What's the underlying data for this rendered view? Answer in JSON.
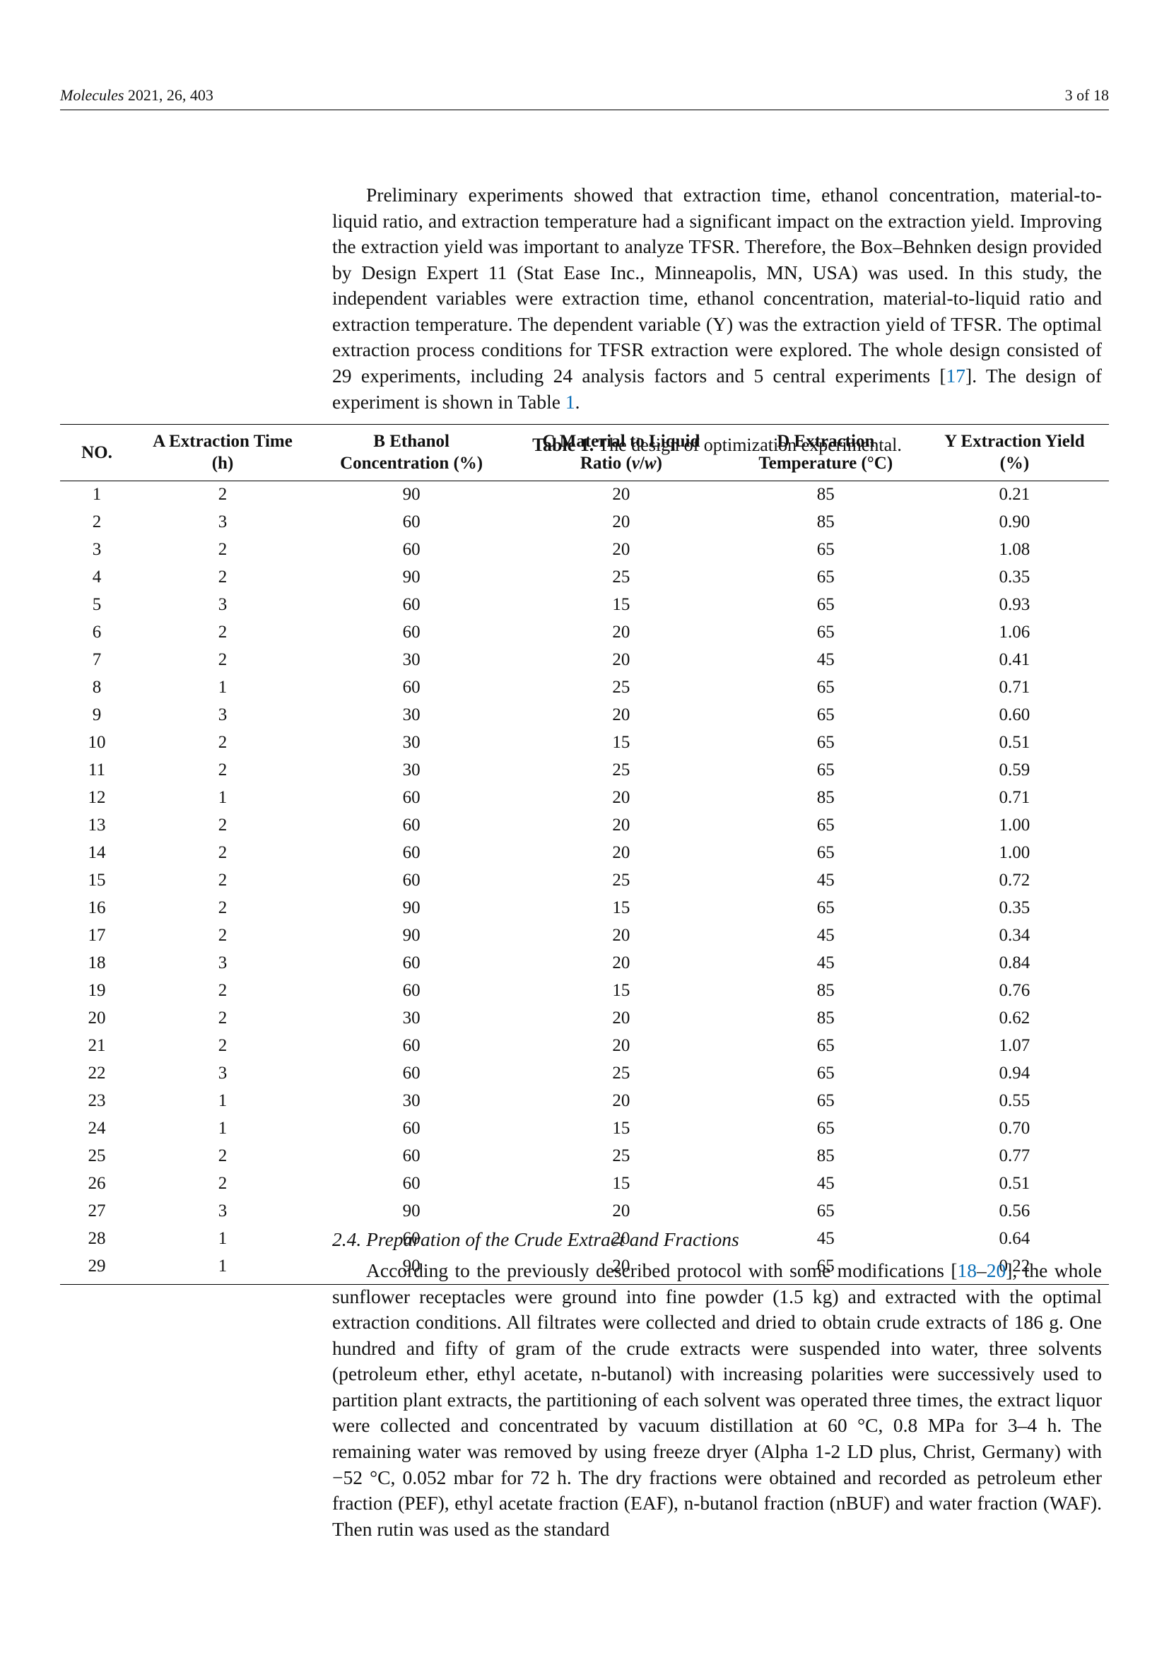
{
  "header": {
    "journal": "Molecules",
    "year": "2021",
    "vol_issue": ", 26, 403",
    "page_info": "3 of 18"
  },
  "paragraph1": "Preliminary experiments showed that extraction time, ethanol concentration, material-to-liquid ratio, and extraction temperature had a significant impact on the extraction yield. Improving the extraction yield was important to analyze TFSR. Therefore, the Box–Behnken design provided by Design Expert 11 (Stat Ease Inc., Minneapolis, MN, USA) was used. In this study, the independent variables were extraction time, ethanol concentration, material-to-liquid ratio and extraction temperature. The dependent variable (Y) was the extraction yield of TFSR. The optimal extraction process conditions for TFSR extraction were explored. The whole design consisted of 29 experiments, including 24 analysis factors and 5 central experiments [",
  "cite17": "17",
  "paragraph1_tail": "]. The design of experiment is shown in Table ",
  "table_ref": "1",
  "paragraph1_end": ".",
  "table_caption_label": "Table 1.",
  "table_caption_text": " The design of optimization experimental.",
  "table": {
    "columns": [
      "NO.",
      "A Extraction Time (h)",
      "B Ethanol Concentration (%)",
      "C Material to Liquid Ratio (v/w)",
      "D Extraction Temperature (°C)",
      "Y Extraction Yield (%)"
    ],
    "col_widths_pct": [
      7,
      17,
      19,
      21,
      18,
      18
    ],
    "rows": [
      [
        "1",
        "2",
        "90",
        "20",
        "85",
        "0.21"
      ],
      [
        "2",
        "3",
        "60",
        "20",
        "85",
        "0.90"
      ],
      [
        "3",
        "2",
        "60",
        "20",
        "65",
        "1.08"
      ],
      [
        "4",
        "2",
        "90",
        "25",
        "65",
        "0.35"
      ],
      [
        "5",
        "3",
        "60",
        "15",
        "65",
        "0.93"
      ],
      [
        "6",
        "2",
        "60",
        "20",
        "65",
        "1.06"
      ],
      [
        "7",
        "2",
        "30",
        "20",
        "45",
        "0.41"
      ],
      [
        "8",
        "1",
        "60",
        "25",
        "65",
        "0.71"
      ],
      [
        "9",
        "3",
        "30",
        "20",
        "65",
        "0.60"
      ],
      [
        "10",
        "2",
        "30",
        "15",
        "65",
        "0.51"
      ],
      [
        "11",
        "2",
        "30",
        "25",
        "65",
        "0.59"
      ],
      [
        "12",
        "1",
        "60",
        "20",
        "85",
        "0.71"
      ],
      [
        "13",
        "2",
        "60",
        "20",
        "65",
        "1.00"
      ],
      [
        "14",
        "2",
        "60",
        "20",
        "65",
        "1.00"
      ],
      [
        "15",
        "2",
        "60",
        "25",
        "45",
        "0.72"
      ],
      [
        "16",
        "2",
        "90",
        "15",
        "65",
        "0.35"
      ],
      [
        "17",
        "2",
        "90",
        "20",
        "45",
        "0.34"
      ],
      [
        "18",
        "3",
        "60",
        "20",
        "45",
        "0.84"
      ],
      [
        "19",
        "2",
        "60",
        "15",
        "85",
        "0.76"
      ],
      [
        "20",
        "2",
        "30",
        "20",
        "85",
        "0.62"
      ],
      [
        "21",
        "2",
        "60",
        "20",
        "65",
        "1.07"
      ],
      [
        "22",
        "3",
        "60",
        "25",
        "65",
        "0.94"
      ],
      [
        "23",
        "1",
        "30",
        "20",
        "65",
        "0.55"
      ],
      [
        "24",
        "1",
        "60",
        "15",
        "65",
        "0.70"
      ],
      [
        "25",
        "2",
        "60",
        "25",
        "85",
        "0.77"
      ],
      [
        "26",
        "2",
        "60",
        "15",
        "45",
        "0.51"
      ],
      [
        "27",
        "3",
        "90",
        "20",
        "65",
        "0.56"
      ],
      [
        "28",
        "1",
        "60",
        "20",
        "45",
        "0.64"
      ],
      [
        "29",
        "1",
        "90",
        "20",
        "65",
        "0.22"
      ]
    ]
  },
  "section_heading": "2.4. Preparation of the Crude Extract and Fractions",
  "paragraph2_a": "According to the previously described protocol with some modifications [",
  "cite18": "18",
  "cite_dash": "–",
  "cite20": "20",
  "paragraph2_b": "], the whole sunflower receptacles were ground into fine powder (1.5 kg) and extracted with the optimal extraction conditions. All filtrates were collected and dried to obtain crude extracts of 186 g. One hundred and fifty of gram of the crude extracts were suspended into water, three solvents (petroleum ether, ethyl acetate, n-butanol) with increasing polarities were successively used to partition plant extracts, the partitioning of each solvent was operated three times, the extract liquor were collected and concentrated by vacuum distillation at 60 °C, 0.8 MPa for 3–4 h. The remaining water was removed by using freeze dryer (Alpha 1-2 LD plus, Christ, Germany) with −52 °C, 0.052 mbar for 72 h. The dry fractions were obtained and recorded as petroleum ether fraction (PEF), ethyl acetate fraction (EAF), n-butanol fraction (nBUF) and water fraction (WAF). Then rutin was used as the standard"
}
